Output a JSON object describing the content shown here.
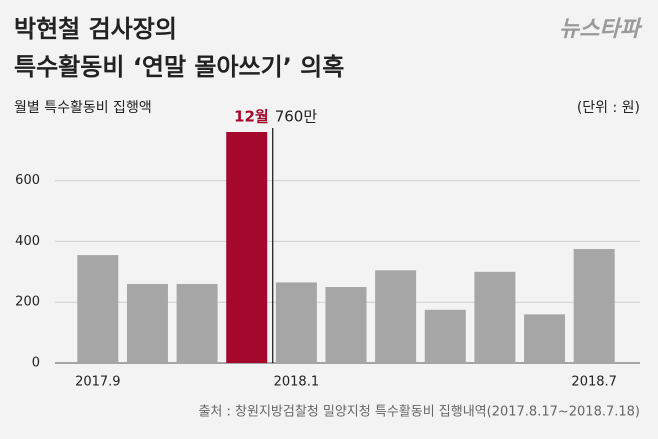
{
  "chart_data": {
    "type": "bar",
    "title_lines": [
      "박현철 검사장의",
      "특수활동비 ‘연말 몰아쓰기’ 의혹"
    ],
    "logo": "뉴스타파",
    "subtitle": "월별 특수활동비 집행액",
    "unit": "(단위 : 원)",
    "source": "출처 : 창원지방검찰청 밀양지청 특수활동비 집행내역(2017.8.17~2018.7.18)",
    "categories": [
      "2017.9",
      null,
      null,
      null,
      "2018.1",
      null,
      null,
      null,
      null,
      null,
      "2018.7"
    ],
    "values": [
      355,
      260,
      260,
      760,
      265,
      250,
      305,
      175,
      300,
      160,
      375
    ],
    "value_labels": [
      null,
      null,
      null,
      "760만",
      null,
      null,
      null,
      null,
      null,
      null,
      null
    ],
    "highlight_label": "12월",
    "colors": [
      "#a6a6a6",
      "#a6a6a6",
      "#a6a6a6",
      "#a5082d",
      "#a6a6a6",
      "#a6a6a6",
      "#a6a6a6",
      "#a6a6a6",
      "#a6a6a6",
      "#a6a6a6",
      "#a6a6a6"
    ],
    "ylim": [
      0,
      760
    ],
    "yticks": [
      0,
      200,
      400,
      600
    ],
    "grid": true
  }
}
